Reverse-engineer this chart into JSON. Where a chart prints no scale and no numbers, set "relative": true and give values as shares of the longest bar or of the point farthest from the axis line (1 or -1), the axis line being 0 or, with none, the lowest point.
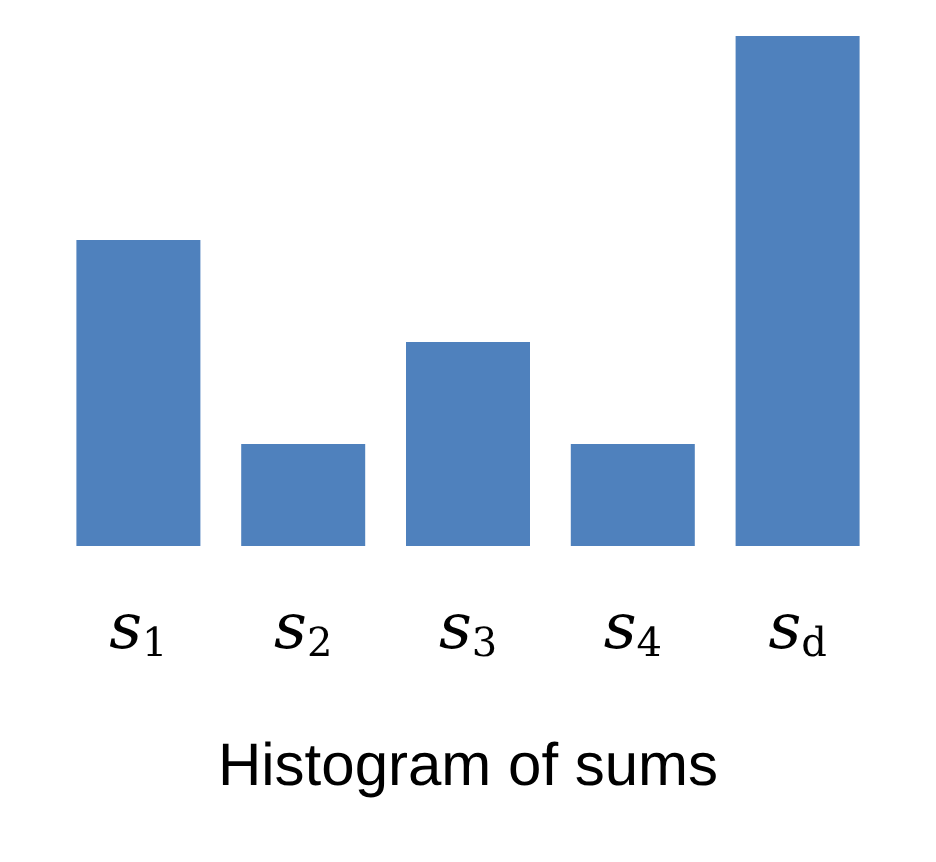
{
  "chart_data": {
    "type": "bar",
    "categories": [
      "s$_{1}$",
      "s$_{2}$",
      "s$_{3}$",
      "s$_{4}$",
      "s$_{d}$"
    ],
    "values": [
      0.6,
      0.2,
      0.4,
      0.2,
      1
    ],
    "relative": true,
    "color": "#4f81bd",
    "xlabel": "Histogram of sums"
  }
}
